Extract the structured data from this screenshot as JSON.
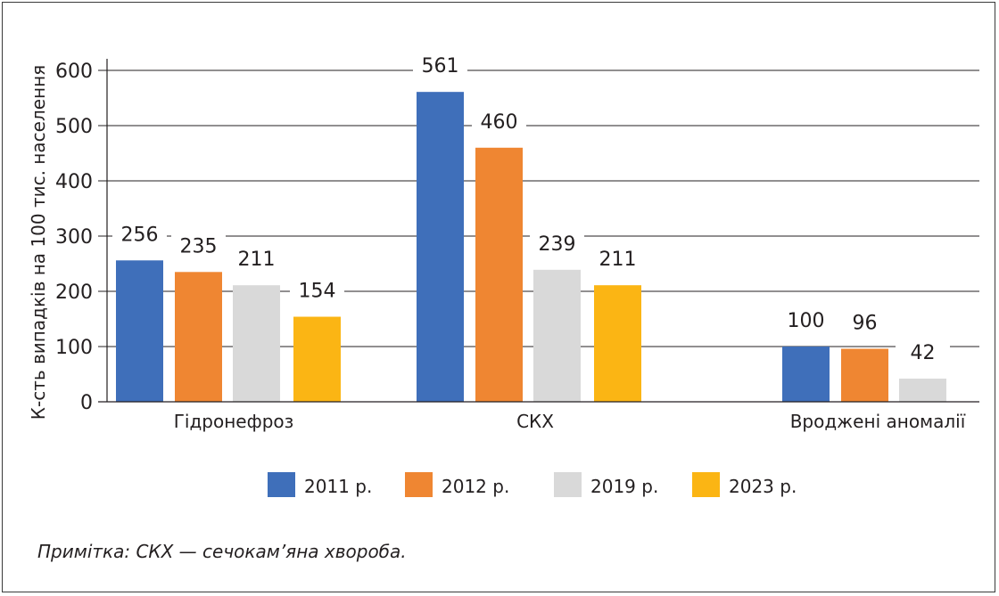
{
  "chart_data": {
    "type": "bar",
    "ylabel": "К-сть випадків на 100 тис. населення",
    "ylim": [
      0,
      600
    ],
    "yticks": [
      "0",
      "100",
      "200",
      "300",
      "400",
      "500",
      "600"
    ],
    "categories": [
      "Гідронефроз",
      "СКХ",
      "Вроджені аномалії"
    ],
    "series": [
      {
        "name": "2011 р.",
        "color": "#3f6fba",
        "values": [
          256,
          561,
          100
        ],
        "labels": [
          "256",
          "561",
          "100"
        ]
      },
      {
        "name": "2012 р.",
        "color": "#ef8632",
        "values": [
          235,
          460,
          96
        ],
        "labels": [
          "235",
          "460",
          "96"
        ]
      },
      {
        "name": "2019 р.",
        "color": "#d9d9d9",
        "values": [
          211,
          239,
          42
        ],
        "labels": [
          "211",
          "239",
          "42"
        ]
      },
      {
        "name": "2023 р.",
        "color": "#fbb514",
        "values": [
          154,
          211,
          null
        ],
        "labels": [
          "154",
          "211",
          ""
        ]
      }
    ],
    "legend_position": "bottom",
    "grid": "horizontal"
  },
  "note": "Примітка: СКХ — сечокам’яна хвороба."
}
